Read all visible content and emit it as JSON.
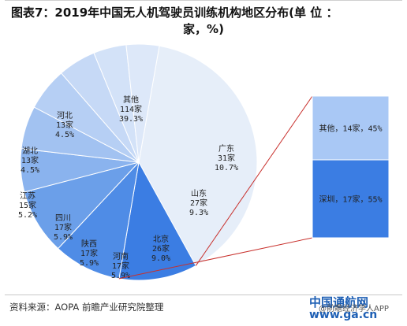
{
  "chart_data": {
    "type": "pie",
    "title": "图表7：2019年中国无人机驾驶员训练机构地区分布(单 位 ：家，%)",
    "title_line1": "图表7：2019年中国无人机驾驶员训练机构地区分布(单 位 ：",
    "title_line2": "家，%)",
    "slices": [
      {
        "name": "其他",
        "count": "114家",
        "value": 39.3,
        "label_pct": "39.3%",
        "color": "#e6eef9"
      },
      {
        "name": "广东",
        "count": "31家",
        "value": 10.7,
        "label_pct": "10.7%",
        "color": "#3b7de3"
      },
      {
        "name": "山东",
        "count": "27家",
        "value": 9.3,
        "label_pct": "9.3%",
        "color": "#4f8ce6"
      },
      {
        "name": "北京",
        "count": "26家",
        "value": 9.0,
        "label_pct": "9.0%",
        "color": "#6b9fe9"
      },
      {
        "name": "河南",
        "count": "17家",
        "value": 5.9,
        "label_pct": "5.9%",
        "color": "#8ab3ee"
      },
      {
        "name": "陕西",
        "count": "17家",
        "value": 5.9,
        "label_pct": "5.9%",
        "color": "#a2c2f1"
      },
      {
        "name": "四川",
        "count": "17家",
        "value": 5.9,
        "label_pct": "5.9%",
        "color": "#b6cff4"
      },
      {
        "name": "江苏",
        "count": "15家",
        "value": 5.2,
        "label_pct": "5.2%",
        "color": "#c6d9f6"
      },
      {
        "name": "湖北",
        "count": "13家",
        "value": 4.5,
        "label_pct": "4.5%",
        "color": "#d3e2f8"
      },
      {
        "name": "河北",
        "count": "13家",
        "value": 4.5,
        "label_pct": "4.5%",
        "color": "#dde8f9"
      }
    ],
    "breakdown": {
      "of": "广东",
      "type": "stacked-bar",
      "segments": [
        {
          "label": "其他，14家，45%",
          "value": 45,
          "color": "#a9c8f5"
        },
        {
          "label": "深圳，17家，55%",
          "value": 55,
          "color": "#3b7de3"
        }
      ]
    },
    "connector_color": "#c8302c"
  },
  "source_text": "资料来源：AOPA 前瞻产业研究院整理",
  "watermark": {
    "line1": "中国通航网",
    "line2": "www.ga.cn",
    "line3": "@前瞻经济学人APP"
  }
}
